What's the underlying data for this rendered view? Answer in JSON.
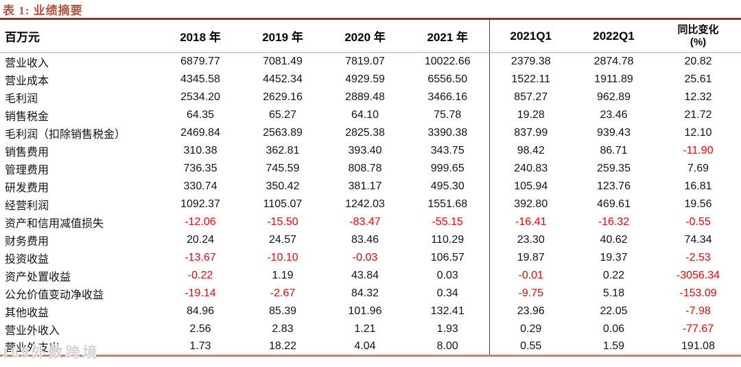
{
  "title": "表 1:  业绩摘要",
  "watermark": "169外数跨境",
  "colors": {
    "title_red": "#b5543e",
    "top_rule": "#823a26",
    "bottom_rule": "#c5806a",
    "header_underline": "#dda794",
    "negative_value_red": "#f50000",
    "text_black": "#121212"
  },
  "table": {
    "unit_header": "百万元",
    "columns": [
      "2018 年",
      "2019 年",
      "2020 年",
      "2021 年",
      "2021Q1",
      "2022Q1",
      "同比变化\n(%)"
    ],
    "divider_before_column_index": 4,
    "rows": [
      {
        "label": "营业收入",
        "values": [
          "6879.77",
          "7081.49",
          "7819.07",
          "10022.66",
          "2379.38",
          "2874.78",
          "20.82"
        ]
      },
      {
        "label": "营业成本",
        "values": [
          "4345.58",
          "4452.34",
          "4929.59",
          "6556.50",
          "1522.11",
          "1911.89",
          "25.61"
        ]
      },
      {
        "label": "毛利润",
        "values": [
          "2534.20",
          "2629.16",
          "2889.48",
          "3466.16",
          "857.27",
          "962.89",
          "12.32"
        ]
      },
      {
        "label": "销售税金",
        "values": [
          "64.35",
          "65.27",
          "64.10",
          "75.78",
          "19.28",
          "23.46",
          "21.72"
        ]
      },
      {
        "label": "毛利润（扣除销售税金）",
        "values": [
          "2469.84",
          "2563.89",
          "2825.38",
          "3390.38",
          "837.99",
          "939.43",
          "12.10"
        ]
      },
      {
        "label": "销售费用",
        "values": [
          "310.38",
          "362.81",
          "393.40",
          "343.75",
          "98.42",
          "86.71",
          "-11.90"
        ]
      },
      {
        "label": "管理费用",
        "values": [
          "736.35",
          "745.59",
          "808.78",
          "999.65",
          "240.83",
          "259.35",
          "7.69"
        ]
      },
      {
        "label": "研发费用",
        "values": [
          "330.74",
          "350.42",
          "381.17",
          "495.30",
          "105.94",
          "123.76",
          "16.81"
        ]
      },
      {
        "label": "经营利润",
        "values": [
          "1092.37",
          "1105.07",
          "1242.03",
          "1551.68",
          "392.80",
          "469.61",
          "19.56"
        ]
      },
      {
        "label": "资产和信用减值损失",
        "values": [
          "-12.06",
          "-15.50",
          "-83.47",
          "-55.15",
          "-16.41",
          "-16.32",
          "-0.55"
        ]
      },
      {
        "label": "财务费用",
        "values": [
          "20.24",
          "24.57",
          "83.46",
          "110.29",
          "23.30",
          "40.62",
          "74.34"
        ]
      },
      {
        "label": "投资收益",
        "values": [
          "-13.67",
          "-10.10",
          "-0.03",
          "106.57",
          "19.87",
          "19.37",
          "-2.53"
        ]
      },
      {
        "label": "资产处置收益",
        "values": [
          "-0.22",
          "1.19",
          "43.84",
          "0.03",
          "-0.01",
          "0.22",
          "-3056.34"
        ]
      },
      {
        "label": "公允价值变动净收益",
        "values": [
          "-19.14",
          "-2.67",
          "84.32",
          "0.34",
          "-9.75",
          "5.18",
          "-153.09"
        ]
      },
      {
        "label": "其他收益",
        "values": [
          "84.96",
          "85.39",
          "101.96",
          "132.41",
          "23.96",
          "22.05",
          "-7.98"
        ]
      },
      {
        "label": "营业外收入",
        "values": [
          "2.56",
          "2.83",
          "1.21",
          "1.93",
          "0.29",
          "0.06",
          "-77.67"
        ]
      },
      {
        "label": "营业外支出",
        "values": [
          "1.73",
          "18.22",
          "4.04",
          "8.00",
          "0.55",
          "1.59",
          "191.08"
        ]
      }
    ]
  }
}
